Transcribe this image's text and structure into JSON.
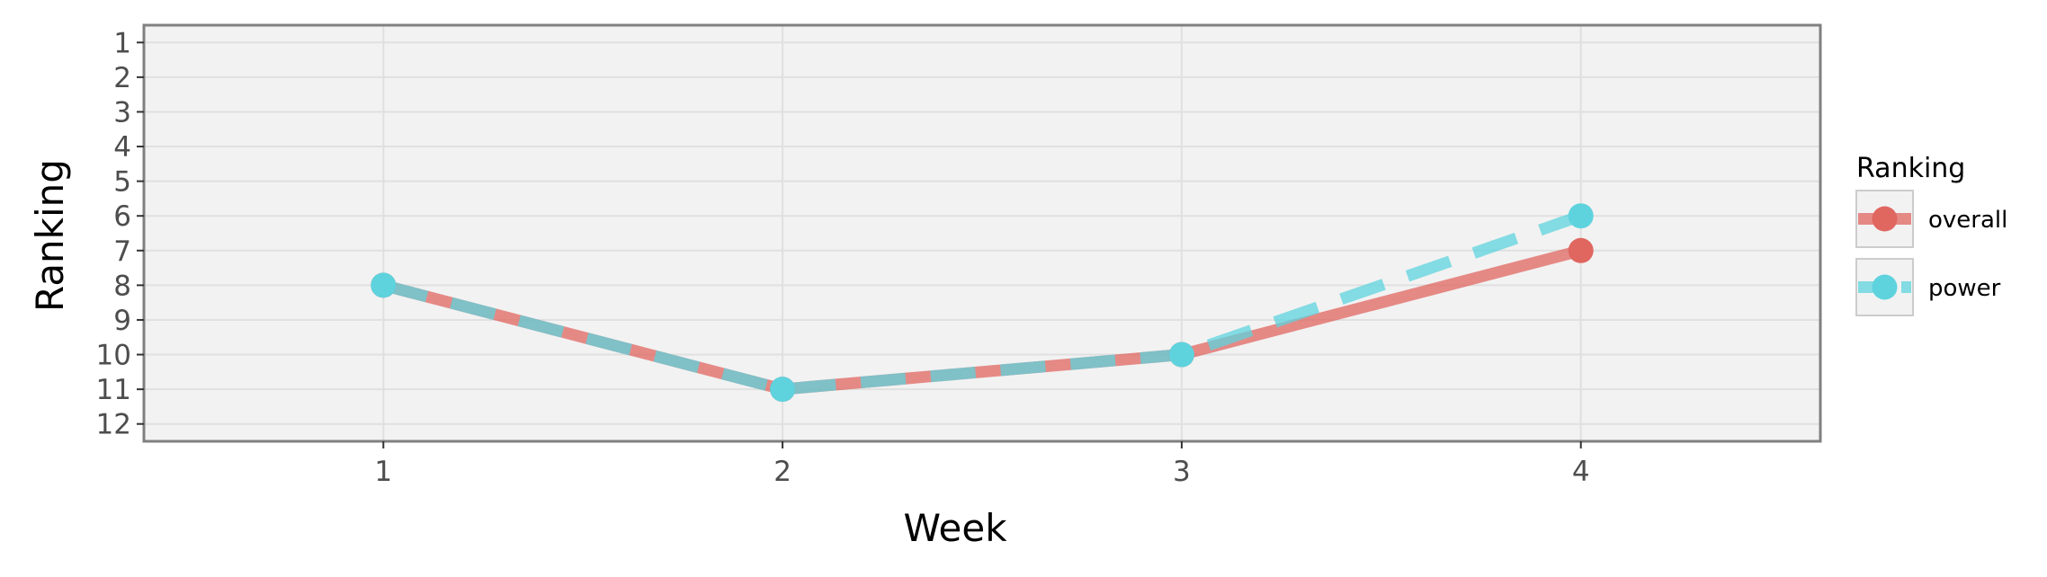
{
  "chart_data": {
    "type": "line",
    "xlabel": "Week",
    "ylabel": "Ranking",
    "x": [
      1,
      2,
      3,
      4
    ],
    "xticks": [
      "1",
      "2",
      "3",
      "4"
    ],
    "xlim": [
      0.4,
      4.6
    ],
    "yticks": [
      "1",
      "2",
      "3",
      "4",
      "5",
      "6",
      "7",
      "8",
      "9",
      "10",
      "11",
      "12"
    ],
    "ylim": [
      12.5,
      0.5
    ],
    "y_reversed": true,
    "grid": true,
    "legend": {
      "title": "Ranking",
      "placement": "right"
    },
    "series": [
      {
        "name": "overall",
        "values": [
          8,
          11,
          10,
          7
        ],
        "color": "#e06660",
        "line_style": "solid"
      },
      {
        "name": "power",
        "values": [
          8,
          11,
          10,
          6
        ],
        "color": "#5ed3de",
        "line_style": "dashed"
      }
    ]
  },
  "colors": {
    "panel_background": "#f2f2f2",
    "grid": "#e0e0e0",
    "panel_border": "#808080"
  }
}
